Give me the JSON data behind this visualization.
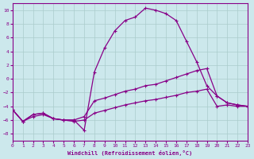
{
  "xlabel": "Windchill (Refroidissement éolien,°C)",
  "background_color": "#cce8ec",
  "grid_color": "#aacccc",
  "line_color": "#880088",
  "x_hours": [
    0,
    1,
    2,
    3,
    4,
    5,
    6,
    7,
    8,
    9,
    10,
    11,
    12,
    13,
    14,
    15,
    16,
    17,
    18,
    19,
    20,
    21,
    22,
    23
  ],
  "y_main": [
    -4.5,
    -6.2,
    -5.2,
    -5.0,
    -5.8,
    -6.0,
    -6.0,
    -7.5,
    1.0,
    4.5,
    7.0,
    8.5,
    9.0,
    10.3,
    10.0,
    9.5,
    8.5,
    5.5,
    2.5,
    -1.0,
    -2.5,
    -3.5,
    -3.8,
    -4.0
  ],
  "y_mid": [
    -4.5,
    -6.2,
    -5.2,
    -5.0,
    -5.8,
    -6.0,
    -6.0,
    -5.5,
    -3.2,
    -2.8,
    -2.3,
    -1.8,
    -1.5,
    -1.0,
    -0.8,
    -0.3,
    0.2,
    0.7,
    1.2,
    1.5,
    -2.5,
    -3.5,
    -3.8,
    -4.0
  ],
  "y_bot": [
    -4.5,
    -6.2,
    -5.5,
    -5.2,
    -5.8,
    -6.0,
    -6.2,
    -6.0,
    -5.0,
    -4.6,
    -4.2,
    -3.8,
    -3.5,
    -3.2,
    -3.0,
    -2.7,
    -2.4,
    -2.0,
    -1.8,
    -1.5,
    -4.0,
    -3.8,
    -4.0,
    -4.0
  ],
  "ylim": [
    -9,
    11
  ],
  "xlim": [
    0,
    23
  ],
  "yticks": [
    -8,
    -6,
    -4,
    -2,
    0,
    2,
    4,
    6,
    8,
    10
  ],
  "xticks": [
    0,
    1,
    2,
    3,
    4,
    5,
    6,
    7,
    8,
    9,
    10,
    11,
    12,
    13,
    14,
    15,
    16,
    17,
    18,
    19,
    20,
    21,
    22,
    23
  ]
}
